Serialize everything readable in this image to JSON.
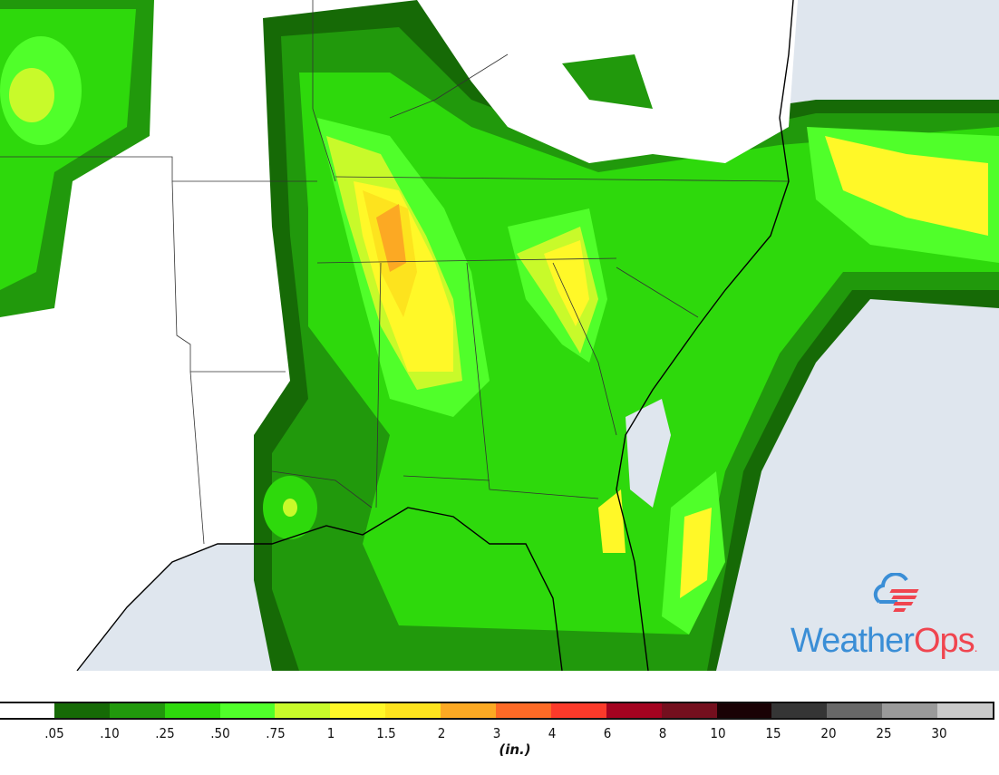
{
  "map": {
    "water_color": "#dfe6ee",
    "land_color": "#ffffff",
    "border_color": "#333333"
  },
  "logo": {
    "part1": "Weather",
    "part2": "Ops",
    "reg": ".",
    "blue": "#3a8ed6",
    "red": "#f0454f"
  },
  "legend": {
    "unit": "(in.)",
    "bins": [
      {
        "label": ".05",
        "color": "#ffffff"
      },
      {
        "label": ".10",
        "color": "#166a06"
      },
      {
        "label": ".25",
        "color": "#21990c"
      },
      {
        "label": ".50",
        "color": "#2ed90c"
      },
      {
        "label": ".75",
        "color": "#50ff2a"
      },
      {
        "label": "1",
        "color": "#c8fa2a"
      },
      {
        "label": "1.5",
        "color": "#fff828"
      },
      {
        "label": "2",
        "color": "#fde31e"
      },
      {
        "label": "3",
        "color": "#fca923"
      },
      {
        "label": "4",
        "color": "#fd6a26"
      },
      {
        "label": "6",
        "color": "#fc3a2a"
      },
      {
        "label": "8",
        "color": "#a40320"
      },
      {
        "label": "10",
        "color": "#740f1e"
      },
      {
        "label": "15",
        "color": "#1a0205"
      },
      {
        "label": "20",
        "color": "#353535"
      },
      {
        "label": "25",
        "color": "#686868"
      },
      {
        "label": "30",
        "color": "#9a9a9a"
      },
      {
        "label": "",
        "color": "#cacaca"
      }
    ]
  }
}
